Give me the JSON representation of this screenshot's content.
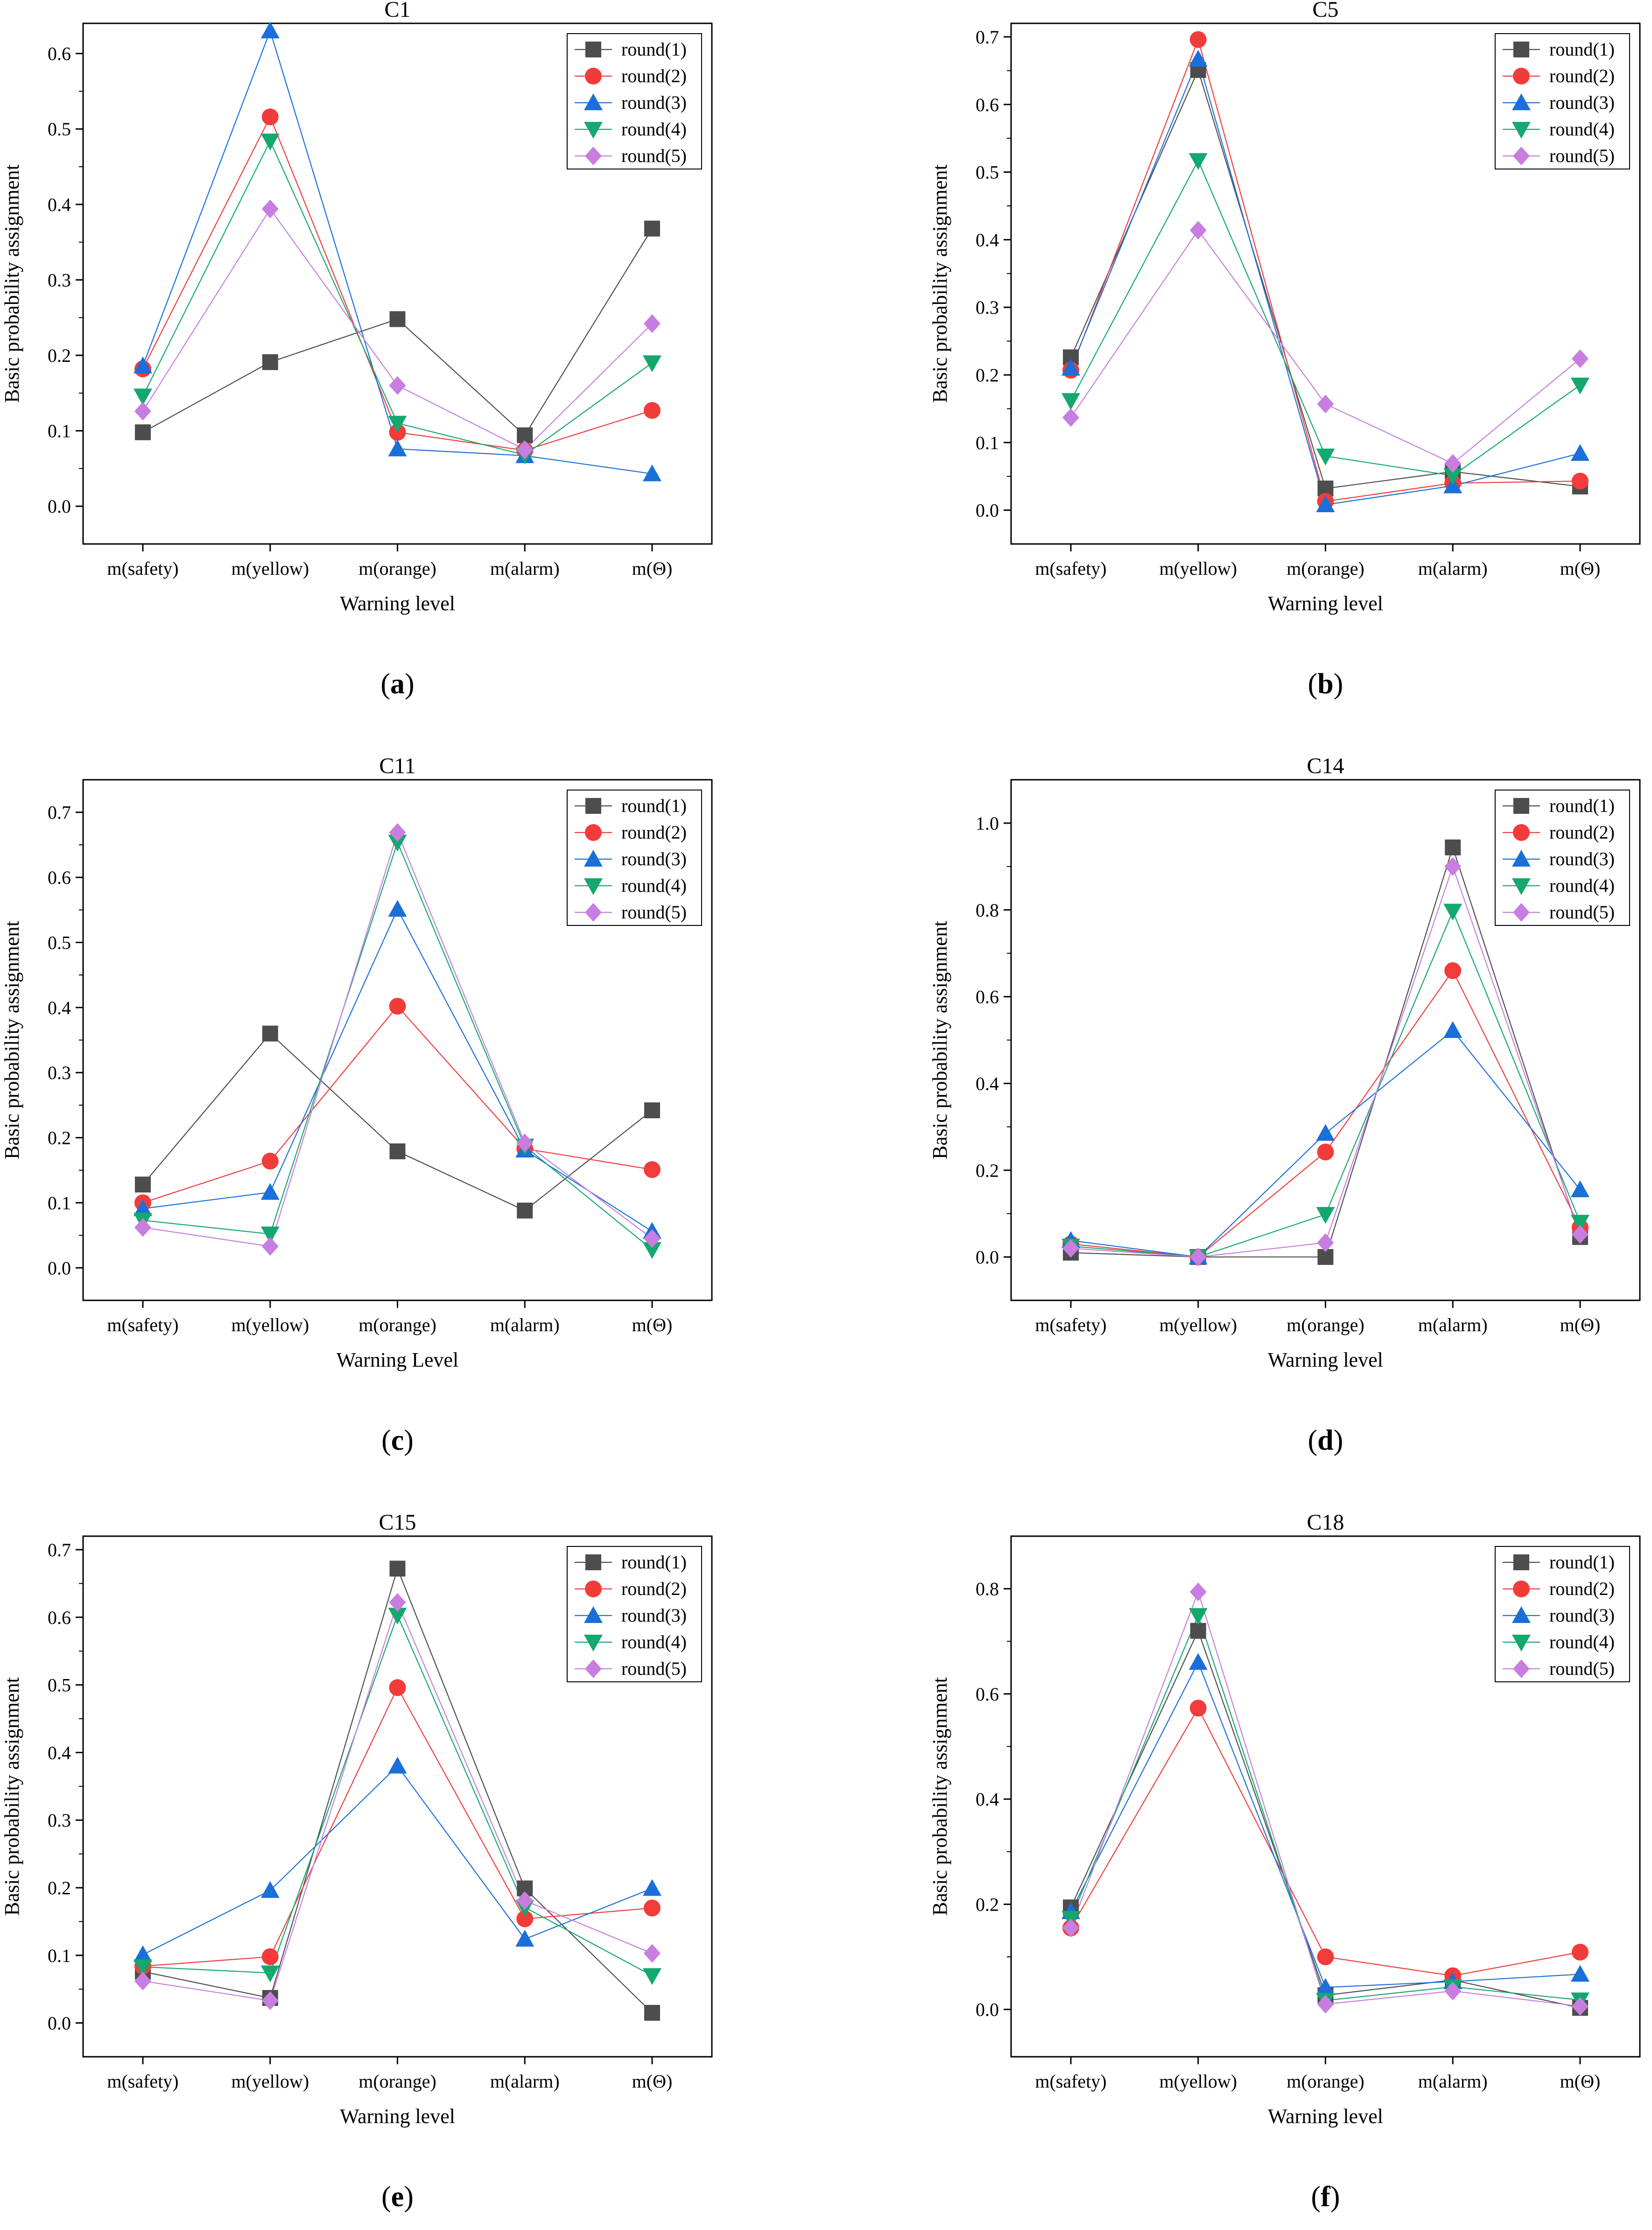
{
  "figure": {
    "background": "#ffffff"
  },
  "series_styles": [
    {
      "name": "round(1)",
      "color": "#4d4d4d",
      "marker": "square"
    },
    {
      "name": "round(2)",
      "color": "#f23b3b",
      "marker": "circle"
    },
    {
      "name": "round(3)",
      "color": "#1a6fd9",
      "marker": "triangle-up"
    },
    {
      "name": "round(4)",
      "color": "#14a86e",
      "marker": "triangle-down"
    },
    {
      "name": "round(5)",
      "color": "#c77ee0",
      "marker": "diamond"
    }
  ],
  "chart_data": [
    {
      "type": "line",
      "title": "C1",
      "caption": "a",
      "xlabel": "Warning level",
      "ylabel": "Basic probability assignment",
      "categories": [
        "m(safety)",
        "m(yellow)",
        "m(orange)",
        "m(alarm)",
        "m(Θ)"
      ],
      "ylim": [
        -0.05,
        0.64
      ],
      "yticks": [
        0.0,
        0.1,
        0.2,
        0.3,
        0.4,
        0.5,
        0.6
      ],
      "ytick_labels": [
        "0.0",
        "0.1",
        "0.2",
        "0.3",
        "0.4",
        "0.5",
        "0.6"
      ],
      "legend_position": "top-right",
      "series": [
        {
          "name": "round(1)",
          "values": [
            0.098,
            0.191,
            0.248,
            0.094,
            0.368
          ]
        },
        {
          "name": "round(2)",
          "values": [
            0.182,
            0.516,
            0.098,
            0.074,
            0.127
          ]
        },
        {
          "name": "round(3)",
          "values": [
            0.186,
            0.63,
            0.076,
            0.067,
            0.043
          ]
        },
        {
          "name": "round(4)",
          "values": [
            0.146,
            0.484,
            0.11,
            0.068,
            0.19
          ]
        },
        {
          "name": "round(5)",
          "values": [
            0.126,
            0.394,
            0.16,
            0.075,
            0.242
          ]
        }
      ]
    },
    {
      "type": "line",
      "title": "C5",
      "caption": "b",
      "xlabel": "Warning level",
      "ylabel": "Basic probability assignment",
      "categories": [
        "m(safety)",
        "m(yellow)",
        "m(orange)",
        "m(alarm)",
        "m(Θ)"
      ],
      "ylim": [
        -0.05,
        0.72
      ],
      "yticks": [
        0.0,
        0.1,
        0.2,
        0.3,
        0.4,
        0.5,
        0.6,
        0.7
      ],
      "ytick_labels": [
        "0.0",
        "0.1",
        "0.2",
        "0.3",
        "0.4",
        "0.5",
        "0.6",
        "0.7"
      ],
      "legend_position": "top-right",
      "series": [
        {
          "name": "round(1)",
          "values": [
            0.226,
            0.651,
            0.032,
            0.057,
            0.035
          ]
        },
        {
          "name": "round(2)",
          "values": [
            0.207,
            0.696,
            0.013,
            0.04,
            0.043
          ]
        },
        {
          "name": "round(3)",
          "values": [
            0.21,
            0.667,
            0.008,
            0.036,
            0.084
          ]
        },
        {
          "name": "round(4)",
          "values": [
            0.162,
            0.517,
            0.08,
            0.051,
            0.185
          ]
        },
        {
          "name": "round(5)",
          "values": [
            0.137,
            0.414,
            0.157,
            0.069,
            0.224
          ]
        }
      ]
    },
    {
      "type": "line",
      "title": "C11",
      "caption": "c",
      "xlabel": "Warning Level",
      "ylabel": "Basic probability assignment",
      "categories": [
        "m(safety)",
        "m(yellow)",
        "m(orange)",
        "m(alarm)",
        "m(Θ)"
      ],
      "ylim": [
        -0.05,
        0.75
      ],
      "yticks": [
        0.0,
        0.1,
        0.2,
        0.3,
        0.4,
        0.5,
        0.6,
        0.7
      ],
      "ytick_labels": [
        "0.0",
        "0.1",
        "0.2",
        "0.3",
        "0.4",
        "0.5",
        "0.6",
        "0.7"
      ],
      "legend_position": "top-right",
      "series": [
        {
          "name": "round(1)",
          "values": [
            0.128,
            0.36,
            0.179,
            0.088,
            0.242
          ]
        },
        {
          "name": "round(2)",
          "values": [
            0.1,
            0.164,
            0.402,
            0.183,
            0.151
          ]
        },
        {
          "name": "round(3)",
          "values": [
            0.091,
            0.116,
            0.551,
            0.181,
            0.056
          ]
        },
        {
          "name": "round(4)",
          "values": [
            0.073,
            0.052,
            0.654,
            0.187,
            0.028
          ]
        },
        {
          "name": "round(5)",
          "values": [
            0.062,
            0.033,
            0.669,
            0.192,
            0.045
          ]
        }
      ]
    },
    {
      "type": "line",
      "title": "C14",
      "caption": "d",
      "xlabel": "Warning level",
      "ylabel": "Basic probability assignment",
      "categories": [
        "m(safety)",
        "m(yellow)",
        "m(orange)",
        "m(alarm)",
        "m(Θ)"
      ],
      "ylim": [
        -0.1,
        1.1
      ],
      "yticks": [
        0.0,
        0.2,
        0.4,
        0.6,
        0.8,
        1.0
      ],
      "ytick_labels": [
        "0.0",
        "0.2",
        "0.4",
        "0.6",
        "0.8",
        "1.0"
      ],
      "legend_position": "top-right",
      "series": [
        {
          "name": "round(1)",
          "values": [
            0.01,
            0.0,
            0.0,
            0.944,
            0.046
          ]
        },
        {
          "name": "round(2)",
          "values": [
            0.03,
            0.0,
            0.242,
            0.66,
            0.068
          ]
        },
        {
          "name": "round(3)",
          "values": [
            0.038,
            0.0,
            0.285,
            0.522,
            0.155
          ]
        },
        {
          "name": "round(4)",
          "values": [
            0.025,
            0.0,
            0.098,
            0.797,
            0.08
          ]
        },
        {
          "name": "round(5)",
          "values": [
            0.02,
            0.0,
            0.033,
            0.9,
            0.052
          ]
        }
      ]
    },
    {
      "type": "line",
      "title": "C15",
      "caption": "e",
      "xlabel": "Warning level",
      "ylabel": "Basic probability assignment",
      "categories": [
        "m(safety)",
        "m(yellow)",
        "m(orange)",
        "m(alarm)",
        "m(Θ)"
      ],
      "ylim": [
        -0.05,
        0.72
      ],
      "yticks": [
        0.0,
        0.1,
        0.2,
        0.3,
        0.4,
        0.5,
        0.6,
        0.7
      ],
      "ytick_labels": [
        "0.0",
        "0.1",
        "0.2",
        "0.3",
        "0.4",
        "0.5",
        "0.6",
        "0.7"
      ],
      "legend_position": "top-right",
      "series": [
        {
          "name": "round(1)",
          "values": [
            0.076,
            0.037,
            0.672,
            0.199,
            0.015
          ]
        },
        {
          "name": "round(2)",
          "values": [
            0.084,
            0.098,
            0.496,
            0.154,
            0.17
          ]
        },
        {
          "name": "round(3)",
          "values": [
            0.101,
            0.196,
            0.38,
            0.124,
            0.199
          ]
        },
        {
          "name": "round(4)",
          "values": [
            0.083,
            0.074,
            0.603,
            0.171,
            0.07
          ]
        },
        {
          "name": "round(5)",
          "values": [
            0.062,
            0.033,
            0.622,
            0.181,
            0.103
          ]
        }
      ]
    },
    {
      "type": "line",
      "title": "C18",
      "caption": "f",
      "xlabel": "Warning level",
      "ylabel": "Basic probability assignment",
      "categories": [
        "m(safety)",
        "m(yellow)",
        "m(orange)",
        "m(alarm)",
        "m(Θ)"
      ],
      "ylim": [
        -0.09,
        0.9
      ],
      "yticks": [
        0.0,
        0.2,
        0.4,
        0.6,
        0.8
      ],
      "ytick_labels": [
        "0.0",
        "0.2",
        "0.4",
        "0.6",
        "0.8"
      ],
      "legend_position": "top-right",
      "series": [
        {
          "name": "round(1)",
          "values": [
            0.194,
            0.72,
            0.027,
            0.056,
            0.003
          ]
        },
        {
          "name": "round(2)",
          "values": [
            0.155,
            0.573,
            0.1,
            0.064,
            0.109
          ]
        },
        {
          "name": "round(3)",
          "values": [
            0.186,
            0.66,
            0.042,
            0.053,
            0.067
          ]
        },
        {
          "name": "round(4)",
          "values": [
            0.173,
            0.749,
            0.017,
            0.043,
            0.018
          ]
        },
        {
          "name": "round(5)",
          "values": [
            0.155,
            0.794,
            0.01,
            0.035,
            0.006
          ]
        }
      ]
    }
  ]
}
